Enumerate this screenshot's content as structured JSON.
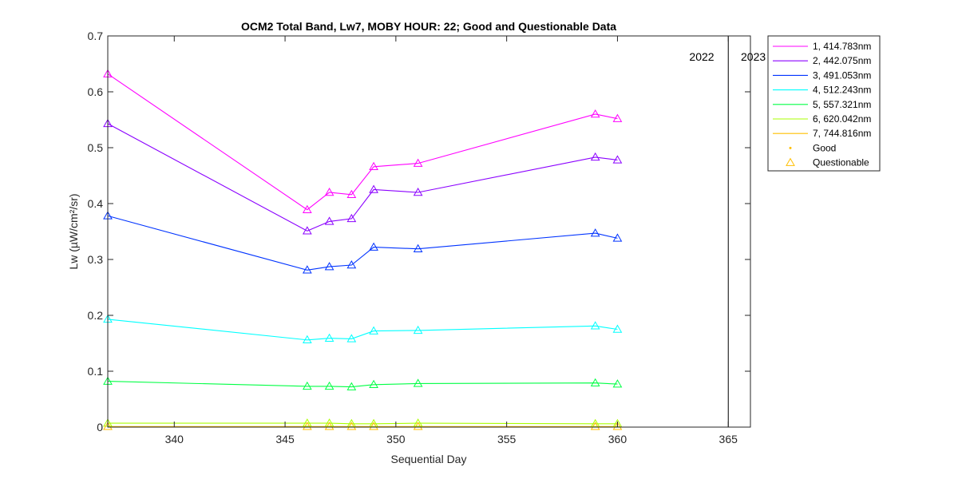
{
  "chart_data": {
    "type": "line",
    "title": "OCM2 Total Band,  Lw7, MOBY HOUR: 22;  Good and Questionable Data",
    "xlabel": "Sequential Day",
    "ylabel": "Lw (µW/cm²/sr)",
    "xlim": [
      337,
      366
    ],
    "ylim": [
      0,
      0.7
    ],
    "xticks": [
      340,
      345,
      350,
      355,
      360,
      365
    ],
    "yticks": [
      0,
      0.1,
      0.2,
      0.3,
      0.4,
      0.5,
      0.6,
      0.7
    ],
    "ytick_labels": [
      "0",
      "0.1",
      "0.2",
      "0.3",
      "0.4",
      "0.5",
      "0.6",
      "0.7"
    ],
    "x": [
      337,
      346,
      347,
      348,
      349,
      351,
      359,
      360
    ],
    "series": [
      {
        "name": "1, 414.783nm",
        "color": "#ff00ff",
        "values": [
          0.632,
          0.389,
          0.42,
          0.416,
          0.466,
          0.472,
          0.56,
          0.552
        ]
      },
      {
        "name": "2, 442.075nm",
        "color": "#8b00ff",
        "values": [
          0.543,
          0.351,
          0.368,
          0.373,
          0.425,
          0.42,
          0.483,
          0.478
        ]
      },
      {
        "name": "3, 491.053nm",
        "color": "#0033ff",
        "values": [
          0.378,
          0.281,
          0.287,
          0.29,
          0.322,
          0.319,
          0.347,
          0.338
        ]
      },
      {
        "name": "4, 512.243nm",
        "color": "#00ffff",
        "values": [
          0.193,
          0.156,
          0.159,
          0.158,
          0.172,
          0.173,
          0.181,
          0.175
        ]
      },
      {
        "name": "5, 557.321nm",
        "color": "#00ff44",
        "values": [
          0.082,
          0.073,
          0.073,
          0.072,
          0.076,
          0.078,
          0.079,
          0.077
        ]
      },
      {
        "name": "6, 620.042nm",
        "color": "#aaff00",
        "values": [
          0.007,
          0.007,
          0.007,
          0.006,
          0.006,
          0.007,
          0.006,
          0.006
        ]
      },
      {
        "name": "7, 744.816nm",
        "color": "#ffbf00",
        "values": [
          0.001,
          0.001,
          0.001,
          0.001,
          0.001,
          0.001,
          0.001,
          0.001
        ]
      }
    ],
    "markers": {
      "good_label": "Good",
      "questionable_label": "Questionable",
      "marker_color": "#ffbf00"
    },
    "year_divider": {
      "x": 365,
      "left_label": "2022",
      "right_label": "2023"
    },
    "legend_location": "outside-right-top",
    "grid": false
  }
}
